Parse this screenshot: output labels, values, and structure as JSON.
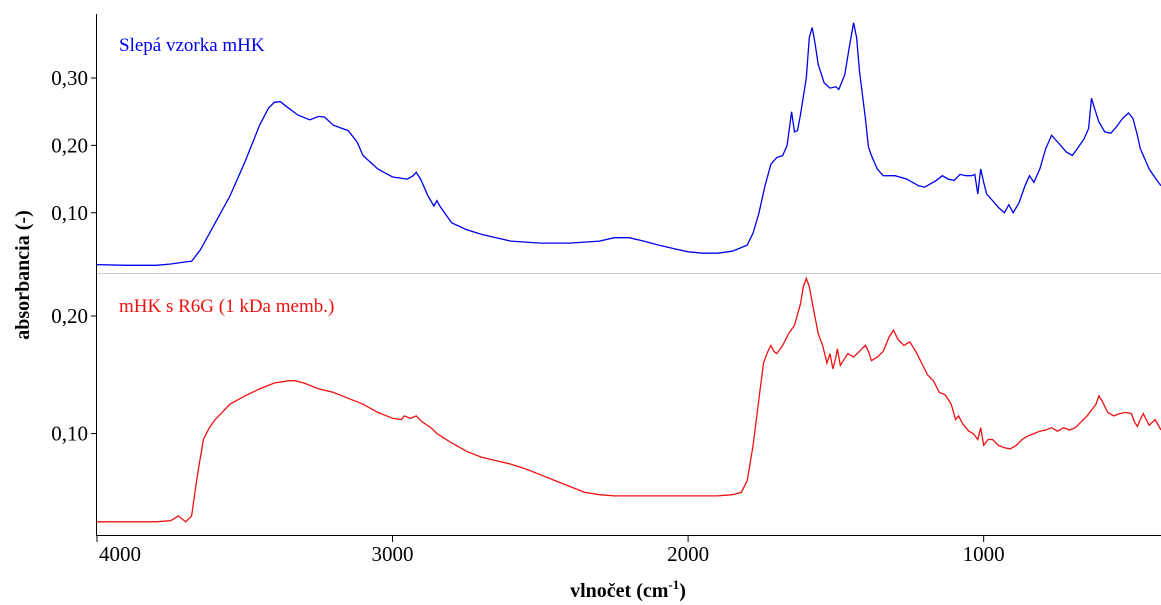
{
  "chart_data": [
    {
      "type": "line",
      "xlabel": "vlnočet (cm⁻¹)",
      "ylabel": "absorbancia (-)",
      "xlim": [
        4000,
        400
      ],
      "x_reversed": true,
      "x_ticks": [
        4000,
        3000,
        2000,
        1000
      ],
      "ylim": [
        0.018,
        0.395
      ],
      "y_ticks": [
        0.1,
        0.2,
        0.3
      ],
      "y_tick_labels": [
        "0,10",
        "0,20",
        "0,30"
      ],
      "grid": false,
      "legend": "inline label, top-left",
      "series": [
        {
          "name": "Slepá vzorka mHK",
          "color": "#0000ee",
          "points": [
            [
              4000,
              0.023
            ],
            [
              3900,
              0.022
            ],
            [
              3800,
              0.022
            ],
            [
              3750,
              0.024
            ],
            [
              3700,
              0.027
            ],
            [
              3680,
              0.028
            ],
            [
              3650,
              0.045
            ],
            [
              3600,
              0.085
            ],
            [
              3550,
              0.125
            ],
            [
              3500,
              0.175
            ],
            [
              3450,
              0.23
            ],
            [
              3420,
              0.255
            ],
            [
              3400,
              0.264
            ],
            [
              3380,
              0.265
            ],
            [
              3360,
              0.258
            ],
            [
              3320,
              0.245
            ],
            [
              3280,
              0.238
            ],
            [
              3250,
              0.243
            ],
            [
              3230,
              0.242
            ],
            [
              3200,
              0.23
            ],
            [
              3170,
              0.225
            ],
            [
              3150,
              0.222
            ],
            [
              3120,
              0.205
            ],
            [
              3100,
              0.185
            ],
            [
              3050,
              0.165
            ],
            [
              3000,
              0.153
            ],
            [
              2950,
              0.15
            ],
            [
              2930,
              0.155
            ],
            [
              2920,
              0.16
            ],
            [
              2905,
              0.15
            ],
            [
              2880,
              0.125
            ],
            [
              2860,
              0.11
            ],
            [
              2850,
              0.118
            ],
            [
              2840,
              0.11
            ],
            [
              2800,
              0.085
            ],
            [
              2750,
              0.075
            ],
            [
              2700,
              0.068
            ],
            [
              2650,
              0.063
            ],
            [
              2600,
              0.058
            ],
            [
              2500,
              0.055
            ],
            [
              2400,
              0.055
            ],
            [
              2300,
              0.058
            ],
            [
              2250,
              0.063
            ],
            [
              2200,
              0.063
            ],
            [
              2150,
              0.058
            ],
            [
              2100,
              0.052
            ],
            [
              2050,
              0.047
            ],
            [
              2000,
              0.042
            ],
            [
              1950,
              0.04
            ],
            [
              1900,
              0.04
            ],
            [
              1850,
              0.043
            ],
            [
              1800,
              0.052
            ],
            [
              1780,
              0.07
            ],
            [
              1760,
              0.1
            ],
            [
              1740,
              0.14
            ],
            [
              1720,
              0.172
            ],
            [
              1700,
              0.182
            ],
            [
              1680,
              0.185
            ],
            [
              1665,
              0.2
            ],
            [
              1650,
              0.25
            ],
            [
              1640,
              0.22
            ],
            [
              1630,
              0.222
            ],
            [
              1620,
              0.245
            ],
            [
              1600,
              0.3
            ],
            [
              1590,
              0.36
            ],
            [
              1580,
              0.375
            ],
            [
              1570,
              0.35
            ],
            [
              1560,
              0.32
            ],
            [
              1540,
              0.293
            ],
            [
              1520,
              0.285
            ],
            [
              1500,
              0.287
            ],
            [
              1490,
              0.283
            ],
            [
              1470,
              0.305
            ],
            [
              1455,
              0.345
            ],
            [
              1440,
              0.382
            ],
            [
              1430,
              0.36
            ],
            [
              1420,
              0.31
            ],
            [
              1400,
              0.24
            ],
            [
              1390,
              0.198
            ],
            [
              1380,
              0.185
            ],
            [
              1360,
              0.165
            ],
            [
              1340,
              0.155
            ],
            [
              1300,
              0.155
            ],
            [
              1260,
              0.15
            ],
            [
              1220,
              0.14
            ],
            [
              1200,
              0.138
            ],
            [
              1160,
              0.148
            ],
            [
              1140,
              0.155
            ],
            [
              1120,
              0.15
            ],
            [
              1100,
              0.148
            ],
            [
              1080,
              0.157
            ],
            [
              1060,
              0.155
            ],
            [
              1040,
              0.155
            ],
            [
              1030,
              0.157
            ],
            [
              1020,
              0.128
            ],
            [
              1010,
              0.165
            ],
            [
              1000,
              0.145
            ],
            [
              990,
              0.128
            ],
            [
              970,
              0.118
            ],
            [
              950,
              0.108
            ],
            [
              930,
              0.1
            ],
            [
              915,
              0.112
            ],
            [
              900,
              0.1
            ],
            [
              880,
              0.115
            ],
            [
              860,
              0.14
            ],
            [
              845,
              0.155
            ],
            [
              830,
              0.145
            ],
            [
              810,
              0.165
            ],
            [
              790,
              0.195
            ],
            [
              770,
              0.215
            ],
            [
              750,
              0.205
            ],
            [
              720,
              0.19
            ],
            [
              700,
              0.185
            ],
            [
              680,
              0.197
            ],
            [
              660,
              0.21
            ],
            [
              645,
              0.225
            ],
            [
              635,
              0.27
            ],
            [
              625,
              0.255
            ],
            [
              610,
              0.235
            ],
            [
              590,
              0.22
            ],
            [
              570,
              0.218
            ],
            [
              550,
              0.228
            ],
            [
              530,
              0.24
            ],
            [
              510,
              0.248
            ],
            [
              495,
              0.24
            ],
            [
              480,
              0.215
            ],
            [
              470,
              0.195
            ],
            [
              460,
              0.185
            ],
            [
              440,
              0.165
            ],
            [
              420,
              0.152
            ],
            [
              400,
              0.14
            ]
          ]
        },
        {
          "name": "mHK s R6G (1 kDa memb.)",
          "color": "#ee1111",
          "points": [
            [
              4000,
              0.025
            ],
            [
              3900,
              0.025
            ],
            [
              3800,
              0.025
            ],
            [
              3750,
              0.026
            ],
            [
              3725,
              0.03
            ],
            [
              3715,
              0.028
            ],
            [
              3700,
              0.025
            ],
            [
              3680,
              0.03
            ],
            [
              3660,
              0.065
            ],
            [
              3640,
              0.095
            ],
            [
              3620,
              0.105
            ],
            [
              3600,
              0.112
            ],
            [
              3550,
              0.125
            ],
            [
              3500,
              0.132
            ],
            [
              3450,
              0.138
            ],
            [
              3400,
              0.143
            ],
            [
              3350,
              0.145
            ],
            [
              3330,
              0.145
            ],
            [
              3300,
              0.143
            ],
            [
              3250,
              0.138
            ],
            [
              3200,
              0.135
            ],
            [
              3150,
              0.13
            ],
            [
              3100,
              0.125
            ],
            [
              3050,
              0.118
            ],
            [
              3000,
              0.113
            ],
            [
              2970,
              0.112
            ],
            [
              2960,
              0.115
            ],
            [
              2940,
              0.113
            ],
            [
              2920,
              0.115
            ],
            [
              2900,
              0.11
            ],
            [
              2870,
              0.105
            ],
            [
              2850,
              0.1
            ],
            [
              2800,
              0.092
            ],
            [
              2750,
              0.085
            ],
            [
              2700,
              0.08
            ],
            [
              2650,
              0.077
            ],
            [
              2600,
              0.074
            ],
            [
              2550,
              0.07
            ],
            [
              2500,
              0.065
            ],
            [
              2450,
              0.06
            ],
            [
              2400,
              0.055
            ],
            [
              2350,
              0.05
            ],
            [
              2300,
              0.048
            ],
            [
              2250,
              0.047
            ],
            [
              2200,
              0.047
            ],
            [
              2100,
              0.047
            ],
            [
              2000,
              0.047
            ],
            [
              1900,
              0.047
            ],
            [
              1850,
              0.048
            ],
            [
              1820,
              0.05
            ],
            [
              1800,
              0.06
            ],
            [
              1780,
              0.09
            ],
            [
              1760,
              0.13
            ],
            [
              1745,
              0.16
            ],
            [
              1730,
              0.17
            ],
            [
              1720,
              0.175
            ],
            [
              1710,
              0.17
            ],
            [
              1700,
              0.168
            ],
            [
              1680,
              0.175
            ],
            [
              1660,
              0.185
            ],
            [
              1640,
              0.192
            ],
            [
              1620,
              0.21
            ],
            [
              1610,
              0.225
            ],
            [
              1600,
              0.232
            ],
            [
              1590,
              0.225
            ],
            [
              1575,
              0.205
            ],
            [
              1560,
              0.185
            ],
            [
              1545,
              0.175
            ],
            [
              1530,
              0.16
            ],
            [
              1520,
              0.168
            ],
            [
              1510,
              0.155
            ],
            [
              1500,
              0.165
            ],
            [
              1495,
              0.172
            ],
            [
              1485,
              0.158
            ],
            [
              1475,
              0.162
            ],
            [
              1460,
              0.168
            ],
            [
              1440,
              0.165
            ],
            [
              1420,
              0.17
            ],
            [
              1400,
              0.175
            ],
            [
              1390,
              0.17
            ],
            [
              1380,
              0.162
            ],
            [
              1360,
              0.165
            ],
            [
              1340,
              0.17
            ],
            [
              1320,
              0.182
            ],
            [
              1305,
              0.188
            ],
            [
              1290,
              0.18
            ],
            [
              1270,
              0.175
            ],
            [
              1250,
              0.178
            ],
            [
              1230,
              0.17
            ],
            [
              1210,
              0.16
            ],
            [
              1190,
              0.15
            ],
            [
              1170,
              0.145
            ],
            [
              1150,
              0.135
            ],
            [
              1130,
              0.133
            ],
            [
              1110,
              0.125
            ],
            [
              1095,
              0.112
            ],
            [
              1085,
              0.115
            ],
            [
              1070,
              0.108
            ],
            [
              1050,
              0.102
            ],
            [
              1035,
              0.1
            ],
            [
              1020,
              0.095
            ],
            [
              1010,
              0.105
            ],
            [
              1000,
              0.09
            ],
            [
              985,
              0.095
            ],
            [
              970,
              0.095
            ],
            [
              950,
              0.09
            ],
            [
              930,
              0.088
            ],
            [
              910,
              0.087
            ],
            [
              890,
              0.09
            ],
            [
              870,
              0.095
            ],
            [
              850,
              0.098
            ],
            [
              830,
              0.1
            ],
            [
              810,
              0.102
            ],
            [
              790,
              0.103
            ],
            [
              770,
              0.105
            ],
            [
              750,
              0.102
            ],
            [
              730,
              0.105
            ],
            [
              710,
              0.103
            ],
            [
              690,
              0.105
            ],
            [
              670,
              0.11
            ],
            [
              650,
              0.115
            ],
            [
              635,
              0.12
            ],
            [
              620,
              0.125
            ],
            [
              610,
              0.132
            ],
            [
              600,
              0.128
            ],
            [
              580,
              0.118
            ],
            [
              560,
              0.115
            ],
            [
              540,
              0.117
            ],
            [
              520,
              0.118
            ],
            [
              500,
              0.117
            ],
            [
              490,
              0.11
            ],
            [
              480,
              0.106
            ],
            [
              470,
              0.112
            ],
            [
              460,
              0.117
            ],
            [
              450,
              0.112
            ],
            [
              440,
              0.107
            ],
            [
              420,
              0.112
            ],
            [
              400,
              0.103
            ]
          ]
        }
      ]
    }
  ],
  "labels": {
    "series1": "Slepá vzorka mHK",
    "series2": "mHK s R6G (1 kDa memb.)",
    "xlabel_main": "vlnočet (cm",
    "xlabel_sup": "-1",
    "xlabel_close": ")",
    "ylabel": "absorbancia (-)"
  },
  "top_panel": {
    "y_range": [
      0.018,
      0.395
    ],
    "y_ticks": [
      0.1,
      0.2,
      0.3
    ],
    "y_tick_labels": [
      "0,10",
      "0,20",
      "0,30"
    ]
  },
  "bottom_panel": {
    "y_range": [
      0.018,
      0.234
    ],
    "y_ticks": [
      0.1,
      0.2
    ],
    "y_tick_labels": [
      "0,10",
      "0,20"
    ]
  },
  "x_tick_labels": [
    "4000",
    "3000",
    "2000",
    "1000"
  ]
}
